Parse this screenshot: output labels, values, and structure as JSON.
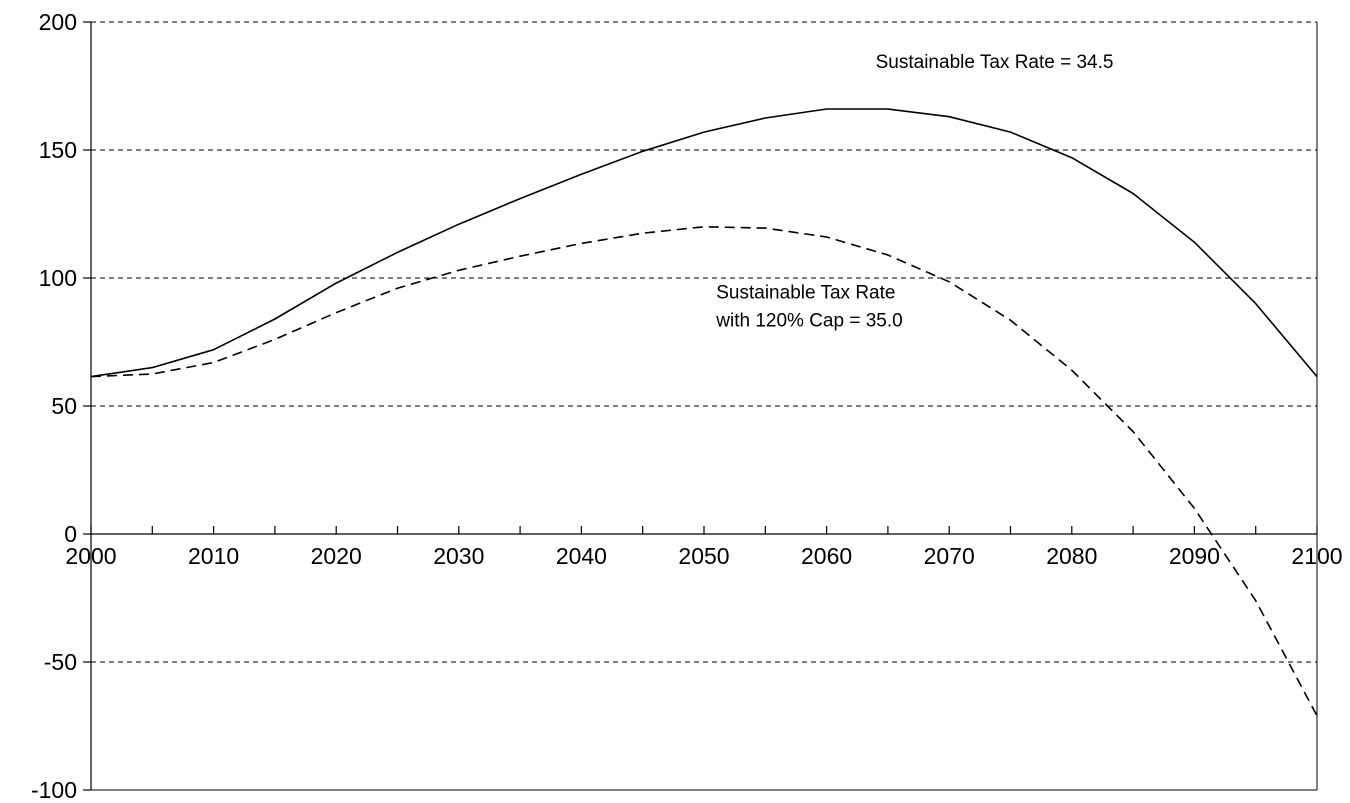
{
  "chart_data": {
    "type": "line",
    "title": "",
    "xlabel": "",
    "ylabel": "",
    "xlim": [
      2000,
      2100
    ],
    "ylim": [
      -100,
      200
    ],
    "x_ticks": [
      2000,
      2010,
      2020,
      2030,
      2040,
      2050,
      2060,
      2070,
      2080,
      2090,
      2100
    ],
    "y_ticks": [
      -100,
      -50,
      0,
      50,
      100,
      150,
      200
    ],
    "x_tick_labels": [
      "2000",
      "2010",
      "2020",
      "2030",
      "2040",
      "2050",
      "2060",
      "2070",
      "2080",
      "2090",
      "2100"
    ],
    "y_tick_labels": [
      "-100",
      "-50",
      "0",
      "50",
      "100",
      "150",
      "200"
    ],
    "grid": "horizontal dashed at y ticks",
    "x": [
      2000,
      2005,
      2010,
      2015,
      2020,
      2025,
      2030,
      2035,
      2040,
      2045,
      2050,
      2055,
      2060,
      2065,
      2070,
      2075,
      2080,
      2085,
      2090,
      2095,
      2100
    ],
    "series": [
      {
        "style": "solid",
        "color": "#000000",
        "values": [
          61.5,
          65,
          72,
          84,
          98,
          110,
          121,
          131,
          140.5,
          149.5,
          157,
          162.5,
          166,
          166,
          163,
          157,
          147,
          133,
          114,
          90,
          61.5
        ]
      },
      {
        "style": "dashed",
        "color": "#000000",
        "values": [
          61.5,
          62.5,
          67,
          76,
          86.5,
          96,
          103,
          108.5,
          113.5,
          117.5,
          120,
          119.5,
          116,
          109,
          98.5,
          83.5,
          64,
          40,
          10,
          -26,
          -71
        ]
      }
    ],
    "annotations": [
      {
        "lines": [
          "Sustainable Tax Rate = 34.5"
        ],
        "series_index": 0,
        "x": 2064,
        "y": 182
      },
      {
        "lines": [
          "Sustainable Tax Rate",
          "with 120% Cap = 35.0"
        ],
        "series_index": 1,
        "x": 2051,
        "y": 92
      }
    ]
  }
}
